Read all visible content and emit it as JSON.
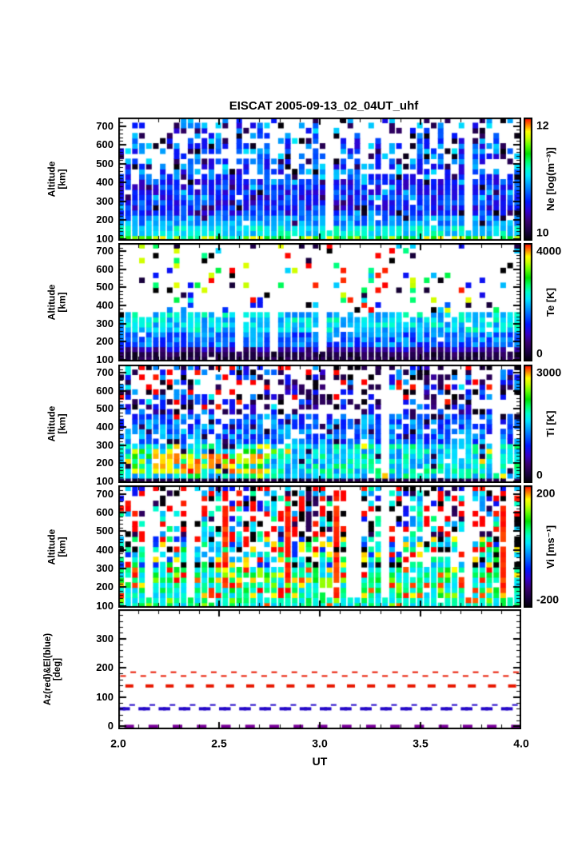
{
  "title": "EISCAT 2005-09-13_02_04UT_uhf",
  "x_axis": {
    "label": "UT",
    "min": 2.0,
    "max": 4.0,
    "tick_values": [
      2.0,
      2.5,
      3.0,
      3.5,
      4.0
    ],
    "tick_labels": [
      "2.0",
      "2.5",
      "3.0",
      "3.5",
      "4.0"
    ],
    "minor_step": 0.1
  },
  "colormap": [
    [
      0.0,
      "#000000"
    ],
    [
      0.08,
      "#1a0040"
    ],
    [
      0.16,
      "#38006e"
    ],
    [
      0.24,
      "#3300cc"
    ],
    [
      0.32,
      "#0018ff"
    ],
    [
      0.4,
      "#0066ff"
    ],
    [
      0.47,
      "#00aaff"
    ],
    [
      0.53,
      "#00e6ff"
    ],
    [
      0.59,
      "#00ffcc"
    ],
    [
      0.65,
      "#00ff66"
    ],
    [
      0.71,
      "#00e000"
    ],
    [
      0.78,
      "#66ff00"
    ],
    [
      0.84,
      "#ccff00"
    ],
    [
      0.89,
      "#ffff00"
    ],
    [
      0.94,
      "#ff8800"
    ],
    [
      1.0,
      "#ff0000"
    ]
  ],
  "chart_data": [
    {
      "id": "ne",
      "type": "heatmap",
      "ylabel": [
        "Altitude",
        "[km]"
      ],
      "alt_range": [
        90,
        745
      ],
      "y_ticks": {
        "major": [
          100,
          200,
          300,
          400,
          500,
          600,
          700
        ],
        "labels": [
          "100",
          "200",
          "300",
          "400",
          "500",
          "600",
          "700"
        ],
        "minor_step": 20
      },
      "colorbar": {
        "label": "Ne [log(m⁻³)]",
        "min": 10,
        "max": 12,
        "min_label": "10",
        "max_label": "12"
      },
      "description": "Electron density: bright green-yellow E-region layer (~11.3-11.8) at 100-150 km, blue values (~10.3-10.9) from 200-450 km, sparse scattered blue/cyan/black echoes above 450 km, many narrow white data-gap columns.",
      "gen": {
        "seed": 20050913,
        "cols": 58,
        "rows": 24,
        "gap_p": 0.08,
        "bands": [
          {
            "alt": [
              90,
              128
            ],
            "t": [
              0.58,
              0.9
            ],
            "white": 0.02
          },
          {
            "alt": [
              128,
              165
            ],
            "t": [
              0.46,
              0.62
            ],
            "white": 0.02
          },
          {
            "alt": [
              165,
              230
            ],
            "t": [
              0.36,
              0.52
            ],
            "white": 0.03,
            "speck_p": 0.07,
            "speck": [
              0.05,
              0.16
            ]
          },
          {
            "alt": [
              230,
              430
            ],
            "t": [
              0.22,
              0.42
            ],
            "white": 0.04,
            "speck_p": 0.13,
            "speck": [
              0.03,
              0.14,
              0.5
            ]
          },
          {
            "alt": [
              430,
              745
            ],
            "t": [
              0.25,
              0.5
            ],
            "white": 0.28,
            "speck_p": 0.2,
            "speck": [
              0.02,
              0.12,
              0.52
            ]
          }
        ],
        "cutoff": [
          400,
          770
        ],
        "sparse_white": 0.68,
        "sparse_palette": [
          0.03,
          0.12,
          0.3,
          0.45,
          0.52
        ]
      }
    },
    {
      "id": "te",
      "type": "heatmap",
      "ylabel": [
        "Altitude",
        "[km]"
      ],
      "alt_range": [
        90,
        745
      ],
      "y_ticks": {
        "major": [
          100,
          200,
          300,
          400,
          500,
          600,
          700
        ],
        "labels": [
          "100",
          "200",
          "300",
          "400",
          "500",
          "600",
          "700"
        ],
        "minor_step": 20
      },
      "colorbar": {
        "label": "Te [K]",
        "min": 0,
        "max": 4000,
        "min_label": "0",
        "max_label": "4000"
      },
      "description": "Electron temperature: very dark (near 0-500 K colormap bottom) below 140 km, purple-blue 150-250 km, cyan ~1800-2400 K up to ~350 km; above ~380 km mostly no data (white) with isolated multicoloured noisy specks.",
      "gen": {
        "seed": 77,
        "cols": 58,
        "rows": 24,
        "gap_p": 0.07,
        "bands": [
          {
            "alt": [
              90,
              135
            ],
            "t": [
              0.03,
              0.16
            ],
            "white": 0.01
          },
          {
            "alt": [
              135,
              185
            ],
            "t": [
              0.13,
              0.3
            ],
            "white": 0.02
          },
          {
            "alt": [
              185,
              260
            ],
            "t": [
              0.3,
              0.5
            ],
            "white": 0.03
          },
          {
            "alt": [
              260,
              370
            ],
            "t": [
              0.42,
              0.62
            ],
            "white": 0.08
          },
          {
            "alt": [
              370,
              745
            ],
            "t": [
              0.3,
              0.6
            ],
            "white": 0.85,
            "speck_p": 0.6,
            "speck": [
              0.0,
              0.08,
              0.3,
              0.5,
              0.65,
              0.85,
              1.0
            ]
          }
        ],
        "cutoff": [
          330,
          470
        ],
        "sparse_white": 0.87,
        "sparse_palette": [
          0.0,
          0.08,
          0.3,
          0.5,
          0.65,
          0.85,
          1.0
        ]
      }
    },
    {
      "id": "ti",
      "type": "heatmap",
      "ylabel": [
        "Altitude",
        "[km]"
      ],
      "alt_range": [
        90,
        745
      ],
      "y_ticks": {
        "major": [
          100,
          200,
          300,
          400,
          500,
          600,
          700
        ],
        "labels": [
          "100",
          "200",
          "300",
          "400",
          "500",
          "600",
          "700"
        ],
        "minor_step": 20
      },
      "colorbar": {
        "label": "Ti [K]",
        "min": 0,
        "max": 3000,
        "min_label": "0",
        "max_label": "3000"
      },
      "description": "Ion temperature: dark bottom layer below 125 km, green/cyan 125-300 km with strong red-orange hot patches (~2500-3000 K) near UT 2.2-2.7 at 140-260 km, blue/cyan 300-470 km, sparse dark-purple/black/blue specks with occasional red above 470 km.",
      "gen": {
        "seed": 1309,
        "cols": 58,
        "rows": 24,
        "gap_p": 0.07,
        "bands": [
          {
            "alt": [
              90,
              125
            ],
            "t": [
              0.04,
              0.14
            ],
            "white": 0.01
          },
          {
            "alt": [
              125,
              300
            ],
            "t": [
              0.42,
              0.66
            ],
            "white": 0.05,
            "speck_p": 0.08,
            "speck": [
              0.08,
              0.9
            ]
          },
          {
            "alt": [
              300,
              470
            ],
            "t": [
              0.28,
              0.52
            ],
            "white": 0.16,
            "speck_p": 0.12,
            "speck": [
              0.06,
              0.12
            ]
          },
          {
            "alt": [
              470,
              745
            ],
            "t": [
              0.1,
              0.4
            ],
            "white": 0.48,
            "speck_p": 0.4,
            "speck": [
              0.03,
              0.1,
              0.12,
              0.3,
              0.55,
              1.0
            ]
          }
        ],
        "hot_regions": [
          {
            "x": [
              2.17,
              2.5
            ],
            "alt": [
              135,
              265
            ],
            "t": [
              0.82,
              1.0
            ],
            "p": 0.85
          },
          {
            "x": [
              2.52,
              2.73
            ],
            "alt": [
              140,
              255
            ],
            "t": [
              0.82,
              1.0
            ],
            "p": 0.7
          },
          {
            "x": [
              2.08,
              2.8
            ],
            "alt": [
              125,
              290
            ],
            "t": [
              0.68,
              0.92
            ],
            "p": 0.3
          }
        ],
        "cutoff": [
          430,
          770
        ],
        "sparse_white": 0.52,
        "sparse_palette": [
          0.02,
          0.1,
          0.3,
          0.45,
          1.0
        ]
      }
    },
    {
      "id": "vi",
      "type": "heatmap",
      "ylabel": [
        "Altitude",
        "[km]"
      ],
      "alt_range": [
        90,
        745
      ],
      "y_ticks": {
        "major": [
          100,
          200,
          300,
          400,
          500,
          600,
          700
        ],
        "labels": [
          "100",
          "200",
          "300",
          "400",
          "500",
          "600",
          "700"
        ],
        "minor_step": 20
      },
      "colorbar": {
        "label": "Vi [ms⁻¹]",
        "min": -200,
        "max": 200,
        "min_label": "-200",
        "max_label": "200"
      },
      "description": "Ion velocity: noisy field; green/cyan near 0 ms⁻¹ below ~300 km with yellow-orange patches, many saturated red (+200) vertical streaks, upper altitudes dominated by scattered red and black (-200) cells with white gaps.",
      "gen": {
        "seed": 424,
        "cols": 58,
        "rows": 24,
        "gap_p": 0.07,
        "bands": [
          {
            "alt": [
              90,
              140
            ],
            "t": [
              0.5,
              0.68
            ],
            "white": 0.02,
            "speck_p": 0.12,
            "speck": [
              0.8,
              0.97
            ]
          },
          {
            "alt": [
              140,
              310
            ],
            "t": [
              0.5,
              0.7
            ],
            "white": 0.05,
            "speck_p": 0.3,
            "speck": [
              0.8,
              0.9,
              0.97,
              1.0
            ]
          },
          {
            "alt": [
              310,
              460
            ],
            "t": [
              0.45,
              0.7
            ],
            "white": 0.25,
            "speck_p": 0.5,
            "speck": [
              1.0,
              0.0,
              0.9,
              0.35
            ]
          },
          {
            "alt": [
              460,
              745
            ],
            "t": [
              0.5,
              0.65
            ],
            "white": 0.4,
            "speck_p": 0.68,
            "speck": [
              1.0,
              1.0,
              0.0,
              0.12,
              0.45
            ]
          }
        ],
        "red_streaks": {
          "p": 0.12,
          "alt": [
            170,
            640
          ]
        },
        "cutoff": [
          500,
          800
        ],
        "sparse_white": 0.45,
        "sparse_palette": [
          1.0,
          1.0,
          0.0,
          0.5,
          0.3
        ]
      }
    },
    {
      "id": "azel",
      "type": "dashed-lines",
      "ylabel": [
        "Az(red)&El(blue)",
        "[deg]"
      ],
      "y_range": [
        -10,
        400
      ],
      "y_ticks": {
        "major": [
          0,
          100,
          200,
          300
        ],
        "labels": [
          "0",
          "100",
          "200",
          "300"
        ],
        "minor_step": 20
      },
      "description": "Antenna pointing: azimuth (red) dashed traces alternating near 172 and 185 deg with a heavier dashed level at ~138 deg; elevation (blue) dashed traces near 73 and 60 deg; purple dashes along 0 deg baseline.",
      "series": [
        {
          "name": "Az",
          "color": "#e81800",
          "dashes": [
            {
              "value": 172,
              "period_ut": 0.1,
              "phase_ut": 0.01,
              "len": 7,
              "h": 2
            },
            {
              "value": 185,
              "period_ut": 0.1,
              "phase_ut": 0.06,
              "len": 7,
              "h": 2
            },
            {
              "value": 138,
              "period_ut": 0.1,
              "phase_ut": 0.035,
              "len": 10,
              "h": 4
            }
          ]
        },
        {
          "name": "El",
          "color": "#2408c8",
          "dashes": [
            {
              "value": 73,
              "period_ut": 0.1,
              "phase_ut": 0.055,
              "len": 7,
              "h": 2
            },
            {
              "value": 60,
              "period_ut": 0.1,
              "phase_ut": 0.0,
              "len": 9,
              "h": 4
            },
            {
              "value": 60,
              "period_ut": 0.1,
              "phase_ut": 0.022,
              "len": 9,
              "h": 4
            }
          ]
        },
        {
          "name": "zero-baseline",
          "color": "#7a0099",
          "dashes": [
            {
              "value": 0,
              "period_ut": 0.12,
              "phase_ut": 0.03,
              "len": 12,
              "h": 4
            }
          ]
        }
      ]
    }
  ]
}
